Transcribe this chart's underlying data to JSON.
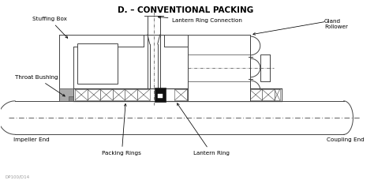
{
  "title": "D. – CONVENTIONAL PACKING",
  "title_fontsize": 7.5,
  "title_fontweight": "bold",
  "line_color": "#444444",
  "dark_color": "#111111",
  "labels": {
    "stuffing_box": "Stuffing Box",
    "lantern_ring_connection": "Lantern Ring Connection",
    "gland_follower": "Gland\nFollower",
    "throat_bushing": "Throat Bushing",
    "impeller_end": "Impeller End",
    "packing_rings": "Packing Rings",
    "lantern_ring": "Lantern Ring",
    "coupling_end": "Coupling End"
  },
  "watermark": "DP100/D14",
  "fig_width": 4.74,
  "fig_height": 2.33,
  "dpi": 100
}
